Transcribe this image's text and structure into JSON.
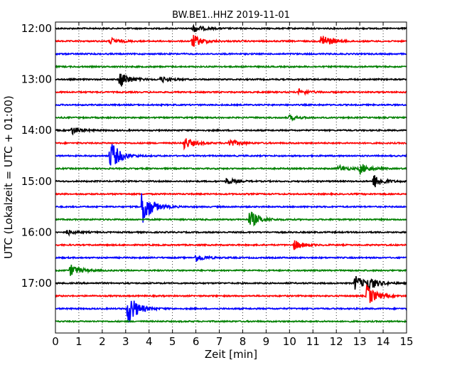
{
  "chart_data": {
    "type": "line",
    "title": "BW.BE1..HHZ 2019-11-01",
    "xlabel": "Zeit  [min]",
    "ylabel": "UTC (Lokalzeit = UTC + 01:00)",
    "xlim": [
      0,
      15
    ],
    "x_ticks": [
      "0",
      "1",
      "2",
      "3",
      "4",
      "5",
      "6",
      "7",
      "8",
      "9",
      "10",
      "11",
      "12",
      "13",
      "14",
      "15"
    ],
    "y_tick_labels": [
      "12:00",
      "13:00",
      "14:00",
      "15:00",
      "16:00",
      "17:00"
    ],
    "grid": "vertical dotted",
    "colors": [
      "#000000",
      "#ff0000",
      "#0000ff",
      "#008000"
    ],
    "series": [
      {
        "start": "12:00",
        "color": "#000000",
        "events": [
          {
            "x": 5.9,
            "amp": 0.25
          }
        ]
      },
      {
        "start": "12:15",
        "color": "#ff0000",
        "events": [
          {
            "x": 2.35,
            "amp": 0.2
          },
          {
            "x": 5.85,
            "amp": 0.45
          },
          {
            "x": 11.35,
            "amp": 0.5
          }
        ]
      },
      {
        "start": "12:30",
        "color": "#0000ff",
        "events": []
      },
      {
        "start": "12:45",
        "color": "#008000",
        "events": []
      },
      {
        "start": "13:00",
        "color": "#000000",
        "events": [
          {
            "x": 2.75,
            "amp": 0.55
          },
          {
            "x": 4.5,
            "amp": 0.2
          }
        ]
      },
      {
        "start": "13:15",
        "color": "#ff0000",
        "events": [
          {
            "x": 10.4,
            "amp": 0.18
          }
        ]
      },
      {
        "start": "13:30",
        "color": "#0000ff",
        "events": []
      },
      {
        "start": "13:45",
        "color": "#008000",
        "events": [
          {
            "x": 10.0,
            "amp": 0.15
          }
        ]
      },
      {
        "start": "14:00",
        "color": "#000000",
        "events": [
          {
            "x": 0.7,
            "amp": 0.25
          }
        ]
      },
      {
        "start": "14:15",
        "color": "#ff0000",
        "events": [
          {
            "x": 5.5,
            "amp": 0.4
          },
          {
            "x": 7.4,
            "amp": 0.25
          }
        ]
      },
      {
        "start": "14:30",
        "color": "#0000ff",
        "events": [
          {
            "x": 2.35,
            "amp": 1.0
          }
        ]
      },
      {
        "start": "14:45",
        "color": "#008000",
        "events": [
          {
            "x": 12.1,
            "amp": 0.2
          },
          {
            "x": 13.0,
            "amp": 0.35
          }
        ]
      },
      {
        "start": "15:00",
        "color": "#000000",
        "events": [
          {
            "x": 7.3,
            "amp": 0.2
          },
          {
            "x": 13.6,
            "amp": 0.45
          }
        ]
      },
      {
        "start": "15:15",
        "color": "#ff0000",
        "events": []
      },
      {
        "start": "15:30",
        "color": "#0000ff",
        "events": [
          {
            "x": 3.7,
            "amp": 1.3
          }
        ]
      },
      {
        "start": "15:45",
        "color": "#008000",
        "events": [
          {
            "x": 8.3,
            "amp": 0.6
          }
        ]
      },
      {
        "start": "16:00",
        "color": "#000000",
        "events": [
          {
            "x": 0.5,
            "amp": 0.15
          }
        ]
      },
      {
        "start": "16:15",
        "color": "#ff0000",
        "events": [
          {
            "x": 10.2,
            "amp": 0.3
          }
        ]
      },
      {
        "start": "16:30",
        "color": "#0000ff",
        "events": [
          {
            "x": 6.0,
            "amp": 0.25
          }
        ]
      },
      {
        "start": "16:45",
        "color": "#008000",
        "events": [
          {
            "x": 0.65,
            "amp": 0.4
          }
        ]
      },
      {
        "start": "17:00",
        "color": "#000000",
        "events": [
          {
            "x": 12.8,
            "amp": 0.5
          },
          {
            "x": 13.3,
            "amp": 0.5
          }
        ]
      },
      {
        "start": "17:15",
        "color": "#ff0000",
        "events": [
          {
            "x": 13.3,
            "amp": 0.7
          }
        ]
      },
      {
        "start": "17:30",
        "color": "#0000ff",
        "events": [
          {
            "x": 3.1,
            "amp": 1.1
          }
        ]
      },
      {
        "start": "17:45",
        "color": "#008000",
        "events": []
      }
    ]
  }
}
